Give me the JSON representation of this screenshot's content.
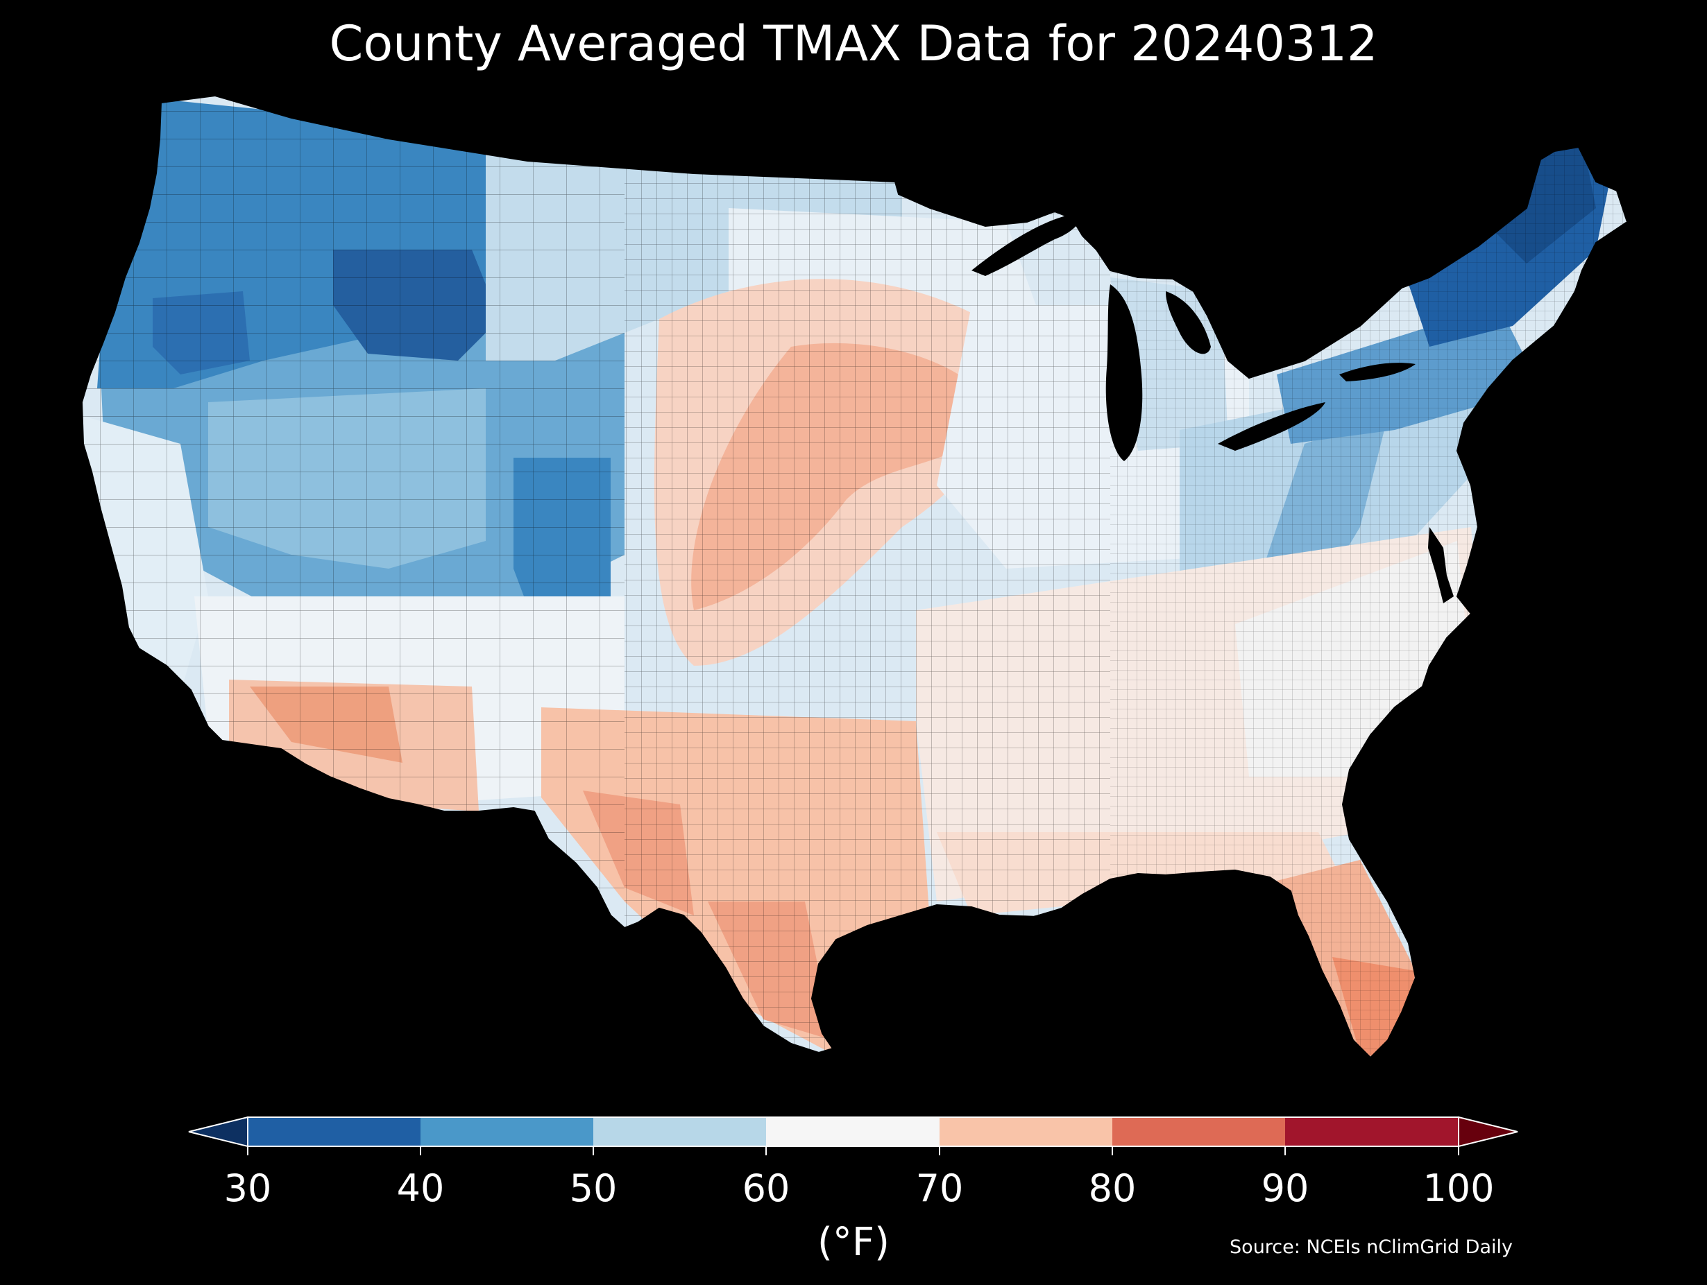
{
  "title": "County Averaged TMAX Data for 20240312",
  "source": "Source: NCEIs nClimGrid Daily",
  "colorbar": {
    "unit_label": "(°F)",
    "ticks": [
      "30",
      "40",
      "50",
      "60",
      "70",
      "80",
      "90",
      "100"
    ],
    "bins": [
      {
        "range": [
          30,
          40
        ],
        "color": "#1f5fa4"
      },
      {
        "range": [
          40,
          50
        ],
        "color": "#4a98c9"
      },
      {
        "range": [
          50,
          60
        ],
        "color": "#b7d7e8"
      },
      {
        "range": [
          60,
          70
        ],
        "color": "#f6f6f6"
      },
      {
        "range": [
          70,
          80
        ],
        "color": "#f9c4a9"
      },
      {
        "range": [
          80,
          90
        ],
        "color": "#de6a55"
      },
      {
        "range": [
          90,
          100
        ],
        "color": "#a1152c"
      }
    ],
    "under_color": "#0d3061",
    "over_color": "#67000d",
    "extend": "both"
  },
  "map": {
    "background": "#000000",
    "region": "Contiguous United States",
    "boundaries": "county",
    "regions_by_color": [
      {
        "area": "Northern Rockies / Pacific Northwest",
        "color": "#2f78b8"
      },
      {
        "area": "Great Basin / Utah",
        "color": "#6aa9d3"
      },
      {
        "area": "Colorado Rockies",
        "color": "#3a86c0"
      },
      {
        "area": "New England / Northeast",
        "color": "#1f5fa4"
      },
      {
        "area": "Appalachians",
        "color": "#6aa9d3"
      },
      {
        "area": "Great Lakes / Midwest",
        "color": "#d4e6f1"
      },
      {
        "area": "Central Plains",
        "color": "#f4b49a"
      },
      {
        "area": "Southern Plains / Texas",
        "color": "#f7bda3"
      },
      {
        "area": "Southeast",
        "color": "#f6e6df"
      },
      {
        "area": "Desert Southwest",
        "color": "#eea07f"
      },
      {
        "area": "South Florida",
        "color": "#ef8f6d"
      },
      {
        "area": "California coast",
        "color": "#e2eef6"
      }
    ]
  }
}
